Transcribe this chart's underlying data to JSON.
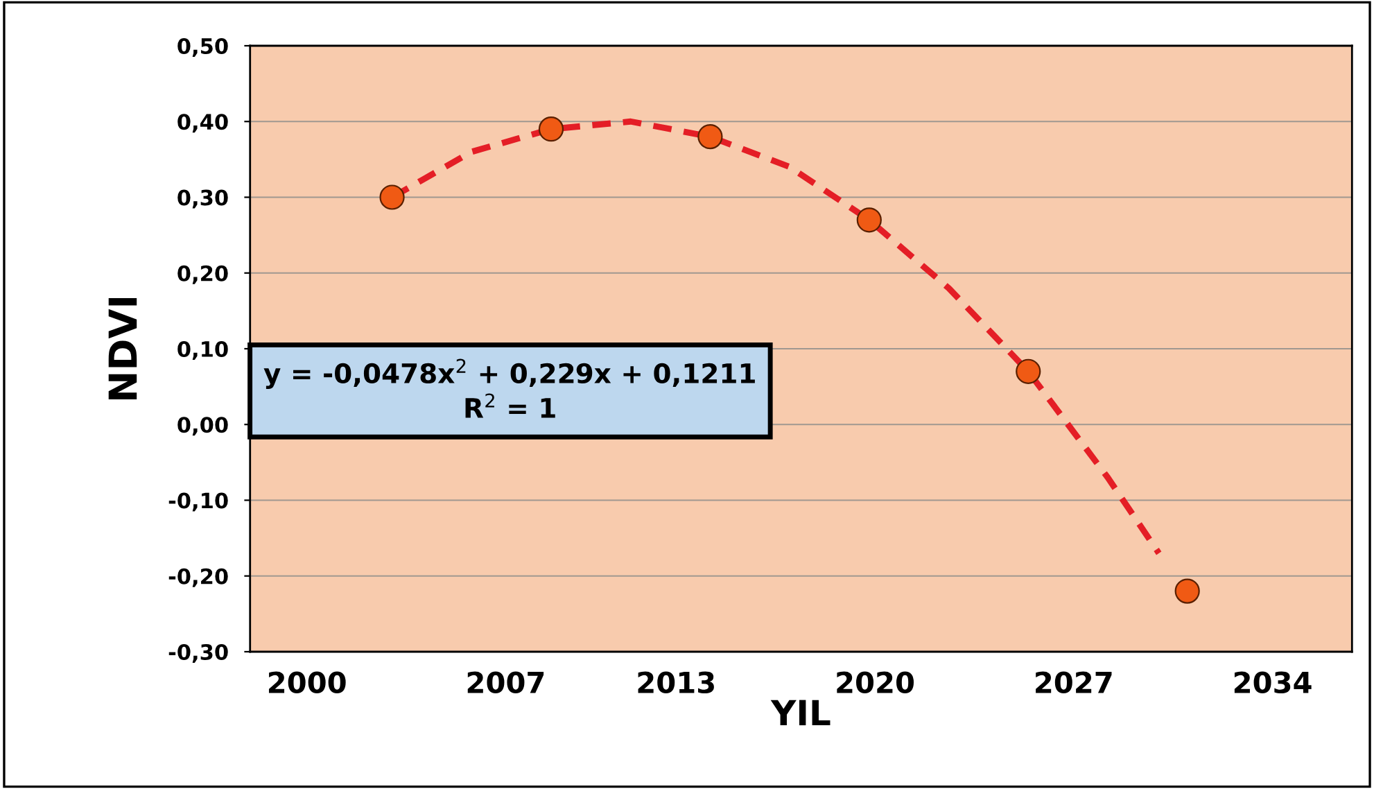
{
  "chart_data": {
    "type": "scatter",
    "xlabel": "YIL",
    "ylabel": "NDVI",
    "series": [
      {
        "color": "#f05a14",
        "marker": "circle",
        "x": [
          2003,
          2008.6,
          2014.2,
          2019.8,
          2025.4,
          2031
        ],
        "values": [
          0.3,
          0.39,
          0.38,
          0.27,
          0.07,
          -0.22
        ]
      },
      {
        "type": "line",
        "color": "#e41e26",
        "line_style": "dashed",
        "marker": "none",
        "x": [
          2003,
          2005.8,
          2008.6,
          2011.4,
          2014.2,
          2017,
          2019.8,
          2022.6,
          2025.4,
          2028.2,
          2030
        ],
        "values": [
          0.3,
          0.36,
          0.39,
          0.4,
          0.38,
          0.34,
          0.27,
          0.18,
          0.07,
          -0.07,
          -0.17
        ]
      }
    ],
    "xlim": [
      1998,
      2036.8
    ],
    "xticks": [
      2000,
      2007,
      2013,
      2020,
      2027,
      2034
    ],
    "ylim": [
      -0.3,
      0.5
    ],
    "yticks": [
      {
        "value": -0.3,
        "label": "-0,30"
      },
      {
        "value": -0.2,
        "label": "-0,20"
      },
      {
        "value": -0.1,
        "label": "-0,10"
      },
      {
        "value": 0,
        "label": "0,00"
      },
      {
        "value": 0.1,
        "label": "0,10"
      },
      {
        "value": 0.2,
        "label": "0,20"
      },
      {
        "value": 0.3,
        "label": "0,30"
      },
      {
        "value": 0.4,
        "label": "0,40"
      },
      {
        "value": 0.5,
        "label": "0,50"
      }
    ],
    "grid": "y",
    "annotations": [
      "y = -0,0478x$^{2}$ + 0,229x + 0,1211\nR$^{2}$ = 1"
    ]
  }
}
